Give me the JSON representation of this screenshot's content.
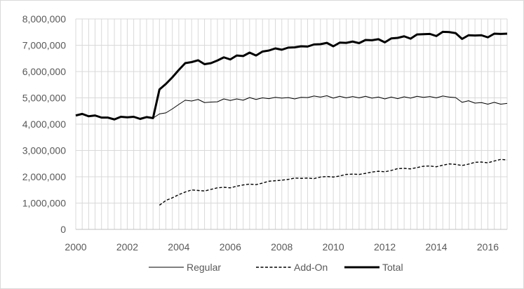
{
  "chart_data": {
    "type": "line",
    "title": "",
    "xlabel": "",
    "ylabel": "",
    "xlim": [
      2000,
      2016.75
    ],
    "ylim": [
      0,
      8000000
    ],
    "grid": true,
    "legend_position": "bottom",
    "x_ticks": [
      2000,
      2002,
      2004,
      2006,
      2008,
      2010,
      2012,
      2014,
      2016
    ],
    "x_tick_labels": [
      "2000",
      "2002",
      "2004",
      "2006",
      "2008",
      "2010",
      "2012",
      "2014",
      "2016"
    ],
    "y_ticks": [
      0,
      1000000,
      2000000,
      3000000,
      4000000,
      5000000,
      6000000,
      7000000,
      8000000
    ],
    "y_tick_labels": [
      "0",
      "1,000,000",
      "2,000,000",
      "3,000,000",
      "4,000,000",
      "5,000,000",
      "6,000,000",
      "7,000,000",
      "8,000,000"
    ],
    "series": [
      {
        "name": "Regular",
        "style": "thin",
        "color": "#000000",
        "x": [
          2000,
          2000.25,
          2000.5,
          2000.75,
          2001,
          2001.25,
          2001.5,
          2001.75,
          2002,
          2002.25,
          2002.5,
          2002.75,
          2003,
          2003.25,
          2003.5,
          2003.75,
          2004,
          2004.25,
          2004.5,
          2004.75,
          2005,
          2005.25,
          2005.5,
          2005.75,
          2006,
          2006.25,
          2006.5,
          2006.75,
          2007,
          2007.25,
          2007.5,
          2007.75,
          2008,
          2008.25,
          2008.5,
          2008.75,
          2009,
          2009.25,
          2009.5,
          2009.75,
          2010,
          2010.25,
          2010.5,
          2010.75,
          2011,
          2011.25,
          2011.5,
          2011.75,
          2012,
          2012.25,
          2012.5,
          2012.75,
          2013,
          2013.25,
          2013.5,
          2013.75,
          2014,
          2014.25,
          2014.5,
          2014.75,
          2015,
          2015.25,
          2015.5,
          2015.75,
          2016,
          2016.25,
          2016.5,
          2016.75
        ],
        "values": [
          4330000,
          4390000,
          4300000,
          4330000,
          4250000,
          4250000,
          4180000,
          4280000,
          4260000,
          4280000,
          4200000,
          4270000,
          4230000,
          4390000,
          4430000,
          4580000,
          4750000,
          4910000,
          4880000,
          4940000,
          4820000,
          4840000,
          4850000,
          4960000,
          4900000,
          4960000,
          4910000,
          5010000,
          4940000,
          5000000,
          4970000,
          5020000,
          4990000,
          5010000,
          4960000,
          5020000,
          5010000,
          5070000,
          5030000,
          5080000,
          4990000,
          5060000,
          5000000,
          5050000,
          5000000,
          5060000,
          4990000,
          5030000,
          4960000,
          5030000,
          4970000,
          5040000,
          4990000,
          5060000,
          5020000,
          5050000,
          5000000,
          5070000,
          5030000,
          5010000,
          4830000,
          4890000,
          4800000,
          4820000,
          4760000,
          4830000,
          4760000,
          4790000
        ]
      },
      {
        "name": "Add-On",
        "style": "dashed",
        "color": "#000000",
        "x": [
          2003.25,
          2003.5,
          2003.75,
          2004,
          2004.25,
          2004.5,
          2004.75,
          2005,
          2005.25,
          2005.5,
          2005.75,
          2006,
          2006.25,
          2006.5,
          2006.75,
          2007,
          2007.25,
          2007.5,
          2007.75,
          2008,
          2008.25,
          2008.5,
          2008.75,
          2009,
          2009.25,
          2009.5,
          2009.75,
          2010,
          2010.25,
          2010.5,
          2010.75,
          2011,
          2011.25,
          2011.5,
          2011.75,
          2012,
          2012.25,
          2012.5,
          2012.75,
          2013,
          2013.25,
          2013.5,
          2013.75,
          2014,
          2014.25,
          2014.5,
          2014.75,
          2015,
          2015.25,
          2015.5,
          2015.75,
          2016,
          2016.25,
          2016.5,
          2016.75
        ],
        "values": [
          920000,
          1100000,
          1200000,
          1320000,
          1420000,
          1500000,
          1480000,
          1460000,
          1520000,
          1580000,
          1600000,
          1580000,
          1640000,
          1690000,
          1720000,
          1700000,
          1760000,
          1830000,
          1850000,
          1870000,
          1900000,
          1950000,
          1940000,
          1950000,
          1930000,
          1990000,
          2010000,
          1990000,
          2030000,
          2090000,
          2100000,
          2090000,
          2130000,
          2180000,
          2210000,
          2190000,
          2240000,
          2310000,
          2320000,
          2300000,
          2350000,
          2400000,
          2410000,
          2380000,
          2440000,
          2490000,
          2470000,
          2430000,
          2480000,
          2550000,
          2560000,
          2530000,
          2600000,
          2660000,
          2640000
        ]
      },
      {
        "name": "Total",
        "style": "thick",
        "color": "#000000",
        "x": [
          2000,
          2000.25,
          2000.5,
          2000.75,
          2001,
          2001.25,
          2001.5,
          2001.75,
          2002,
          2002.25,
          2002.5,
          2002.75,
          2003,
          2003.25,
          2003.5,
          2003.75,
          2004,
          2004.25,
          2004.5,
          2004.75,
          2005,
          2005.25,
          2005.5,
          2005.75,
          2006,
          2006.25,
          2006.5,
          2006.75,
          2007,
          2007.25,
          2007.5,
          2007.75,
          2008,
          2008.25,
          2008.5,
          2008.75,
          2009,
          2009.25,
          2009.5,
          2009.75,
          2010,
          2010.25,
          2010.5,
          2010.75,
          2011,
          2011.25,
          2011.5,
          2011.75,
          2012,
          2012.25,
          2012.5,
          2012.75,
          2013,
          2013.25,
          2013.5,
          2013.75,
          2014,
          2014.25,
          2014.5,
          2014.75,
          2015,
          2015.25,
          2015.5,
          2015.75,
          2016,
          2016.25,
          2016.5,
          2016.75
        ],
        "values": [
          4330000,
          4390000,
          4300000,
          4330000,
          4250000,
          4250000,
          4180000,
          4280000,
          4260000,
          4280000,
          4200000,
          4270000,
          4230000,
          5320000,
          5530000,
          5780000,
          6060000,
          6320000,
          6360000,
          6430000,
          6280000,
          6320000,
          6420000,
          6540000,
          6460000,
          6610000,
          6590000,
          6720000,
          6610000,
          6760000,
          6800000,
          6880000,
          6830000,
          6910000,
          6920000,
          6960000,
          6950000,
          7030000,
          7040000,
          7090000,
          6960000,
          7100000,
          7090000,
          7140000,
          7080000,
          7200000,
          7190000,
          7230000,
          7110000,
          7260000,
          7280000,
          7340000,
          7250000,
          7410000,
          7420000,
          7430000,
          7350000,
          7510000,
          7500000,
          7460000,
          7240000,
          7380000,
          7370000,
          7380000,
          7300000,
          7440000,
          7430000,
          7440000
        ]
      }
    ]
  }
}
